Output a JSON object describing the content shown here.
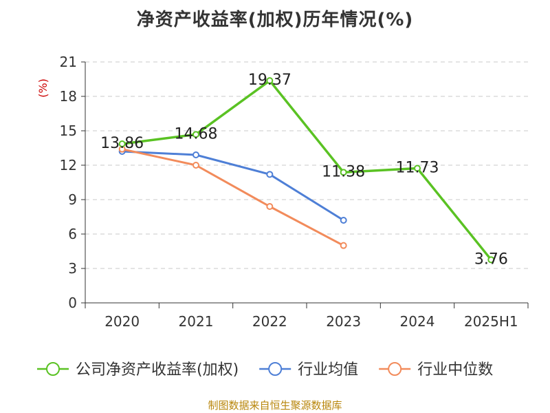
{
  "chart_data": {
    "type": "line",
    "title": "净资产收益率(加权)历年情况(%)",
    "ylabel": "(%)",
    "xlabel": "",
    "categories": [
      "2020",
      "2021",
      "2022",
      "2023",
      "2024",
      "2025H1"
    ],
    "yticks": [
      0,
      3,
      6,
      9,
      12,
      15,
      18,
      21
    ],
    "ylim": [
      0,
      21
    ],
    "grid": "horizontal-dashed",
    "legend_position": "bottom",
    "series": [
      {
        "name": "公司净资产收益率(加权)",
        "color": "#5ac223",
        "values": [
          13.86,
          14.68,
          19.37,
          11.38,
          11.73,
          3.76
        ],
        "labels": [
          "13.86",
          "14.68",
          "19.37",
          "11.38",
          "11.73",
          "3.76"
        ]
      },
      {
        "name": "行业均值",
        "color": "#4e7fd6",
        "values": [
          13.2,
          12.9,
          11.2,
          7.2,
          null,
          null
        ]
      },
      {
        "name": "行业中位数",
        "color": "#f28b5b",
        "values": [
          13.4,
          12.0,
          8.4,
          5.0,
          null,
          null
        ]
      }
    ]
  },
  "source": "制图数据来自恒生聚源数据库",
  "colors": {
    "title": "#333333",
    "ylabel": "#cc0000",
    "source": "#b8860b"
  }
}
